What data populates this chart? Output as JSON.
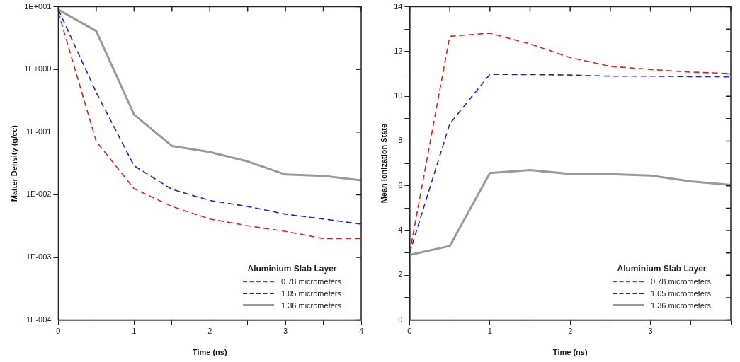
{
  "chart_data": [
    {
      "type": "line",
      "xlabel": "Time (ns)",
      "ylabel": "Matter Density (g/cc)",
      "legend_title": "Aluminium Slab Layer",
      "legend": "bottom right",
      "log": "y",
      "grid": false,
      "marker": "none",
      "x": [
        0,
        0.5,
        1,
        1.5,
        2,
        2.5,
        3,
        3.5,
        4
      ],
      "xlim": [
        0,
        4
      ],
      "xticks": [
        0,
        {
          "value": 0.5,
          "label": null
        },
        1,
        {
          "value": 1.5,
          "label": null
        },
        2,
        {
          "value": 2.5,
          "label": null
        },
        3,
        {
          "value": 3.5,
          "label": null
        },
        4
      ],
      "ylim": [
        0.0001,
        10
      ],
      "yticks": [
        {
          "value": 0.0001,
          "label": "1E-004"
        },
        {
          "value": 0.001,
          "label": "1E-003"
        },
        {
          "value": 0.01,
          "label": "1E-002"
        },
        {
          "value": 0.1,
          "label": "1E-001"
        },
        {
          "value": 1,
          "label": "1E+000"
        },
        {
          "value": 10,
          "label": "1E+001"
        }
      ],
      "series": [
        {
          "name": "0.78 micrometers",
          "color": "#e02020",
          "line_style": "dashed",
          "values": [
            8.1,
            0.071,
            0.0125,
            0.0065,
            0.0041,
            0.0032,
            0.0026,
            0.002,
            0.002
          ]
        },
        {
          "name": "1.05 micrometers",
          "color": "#2020d0",
          "line_style": "dashed",
          "values": [
            9,
            0.43,
            0.029,
            0.0122,
            0.0081,
            0.0065,
            0.0049,
            0.0041,
            0.0034
          ]
        },
        {
          "name": "1.36 micrometers",
          "color": "#999999",
          "line_style": "solid",
          "values": [
            9,
            4.1,
            0.19,
            0.06,
            0.048,
            0.034,
            0.021,
            0.02,
            0.017
          ]
        }
      ]
    },
    {
      "type": "line",
      "xlabel": "Time (ns)",
      "ylabel": "Mean Ionization State",
      "legend_title": "Aluminium Slab Layer",
      "legend": "bottom right",
      "grid": false,
      "marker": "none",
      "x": [
        0,
        0.5,
        1,
        1.5,
        2,
        2.5,
        3,
        3.5,
        4
      ],
      "xlim": [
        0,
        4
      ],
      "xticks": [
        0,
        {
          "value": 0.5,
          "label": null
        },
        1,
        {
          "value": 1.5,
          "label": null
        },
        2,
        {
          "value": 2.5,
          "label": null
        },
        3,
        {
          "value": 3.5,
          "label": null
        },
        {
          "value": 4,
          "label": null
        }
      ],
      "ylim": [
        0,
        14
      ],
      "yticks": [
        0,
        {
          "value": 1,
          "label": null
        },
        2,
        {
          "value": 3,
          "label": null
        },
        4,
        {
          "value": 5,
          "label": null
        },
        6,
        {
          "value": 7,
          "label": null
        },
        8,
        {
          "value": 9,
          "label": null
        },
        10,
        {
          "value": 11,
          "label": null
        },
        12,
        {
          "value": 13,
          "label": null
        },
        14
      ],
      "series": [
        {
          "name": "0.78 micrometers",
          "color": "#e02020",
          "line_style": "dashed",
          "values": [
            3.0,
            12.68,
            12.82,
            12.34,
            11.73,
            11.34,
            11.2,
            11.08,
            11.02
          ]
        },
        {
          "name": "1.05 micrometers",
          "color": "#2020d0",
          "line_style": "dashed",
          "values": [
            3.0,
            8.77,
            10.98,
            10.97,
            10.95,
            10.9,
            10.9,
            10.88,
            10.87
          ]
        },
        {
          "name": "1.36 micrometers",
          "color": "#999999",
          "line_style": "solid",
          "values": [
            2.91,
            3.31,
            6.57,
            6.7,
            6.53,
            6.52,
            6.46,
            6.2,
            6.04
          ]
        }
      ]
    }
  ]
}
